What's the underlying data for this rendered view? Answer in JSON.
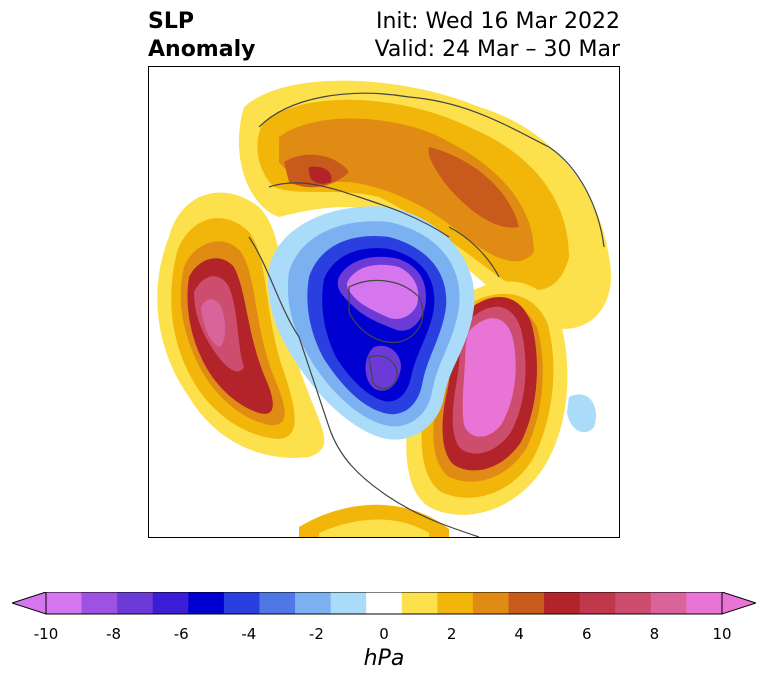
{
  "title": {
    "left_line1": "SLP",
    "left_line2": "Anomaly",
    "right_line1": "Init: Wed 16 Mar 2022",
    "right_line2": "Valid: 24 Mar – 30 Mar"
  },
  "map": {
    "projection": "north-polar-stereographic",
    "field": "sea level pressure anomaly",
    "features": {
      "negative_center": "Arctic / Canadian Archipelago, strongest near -10 hPa",
      "positive_center_pacific": "North Pacific / Gulf of Alaska, up to about 8 hPa",
      "positive_center_atlantic": "North Atlantic near Greenland/Iceland, up to about 10 hPa",
      "positive_eurasia": "Northern Eurasia, about 2-6 hPa"
    }
  },
  "colorbar": {
    "unit": "hPa",
    "extend": "both",
    "ticks": [
      "-10",
      "-8",
      "-6",
      "-4",
      "-2",
      "0",
      "2",
      "4",
      "6",
      "8",
      "10"
    ],
    "tick_values": [
      -10,
      -8,
      -6,
      -4,
      -2,
      0,
      2,
      4,
      6,
      8,
      10
    ],
    "levels": [
      -10,
      -9,
      -8,
      -7,
      -6,
      -5,
      -4,
      -3,
      -2,
      -1,
      1,
      2,
      3,
      4,
      5,
      6,
      7,
      8,
      9,
      10
    ],
    "colors": [
      "#d676ee",
      "#9e52e2",
      "#6b3ad7",
      "#3b1dd6",
      "#0000d0",
      "#2a3fe0",
      "#4f77e6",
      "#7bb0f1",
      "#aadcf9",
      "#ffffff",
      "#fce14c",
      "#f2b50a",
      "#e08c14",
      "#c85a1c",
      "#b2232a",
      "#c1384c",
      "#cd4d6e",
      "#d9649a",
      "#e874d6"
    ],
    "under_color": "#d676ee",
    "over_color": "#e874d6"
  }
}
